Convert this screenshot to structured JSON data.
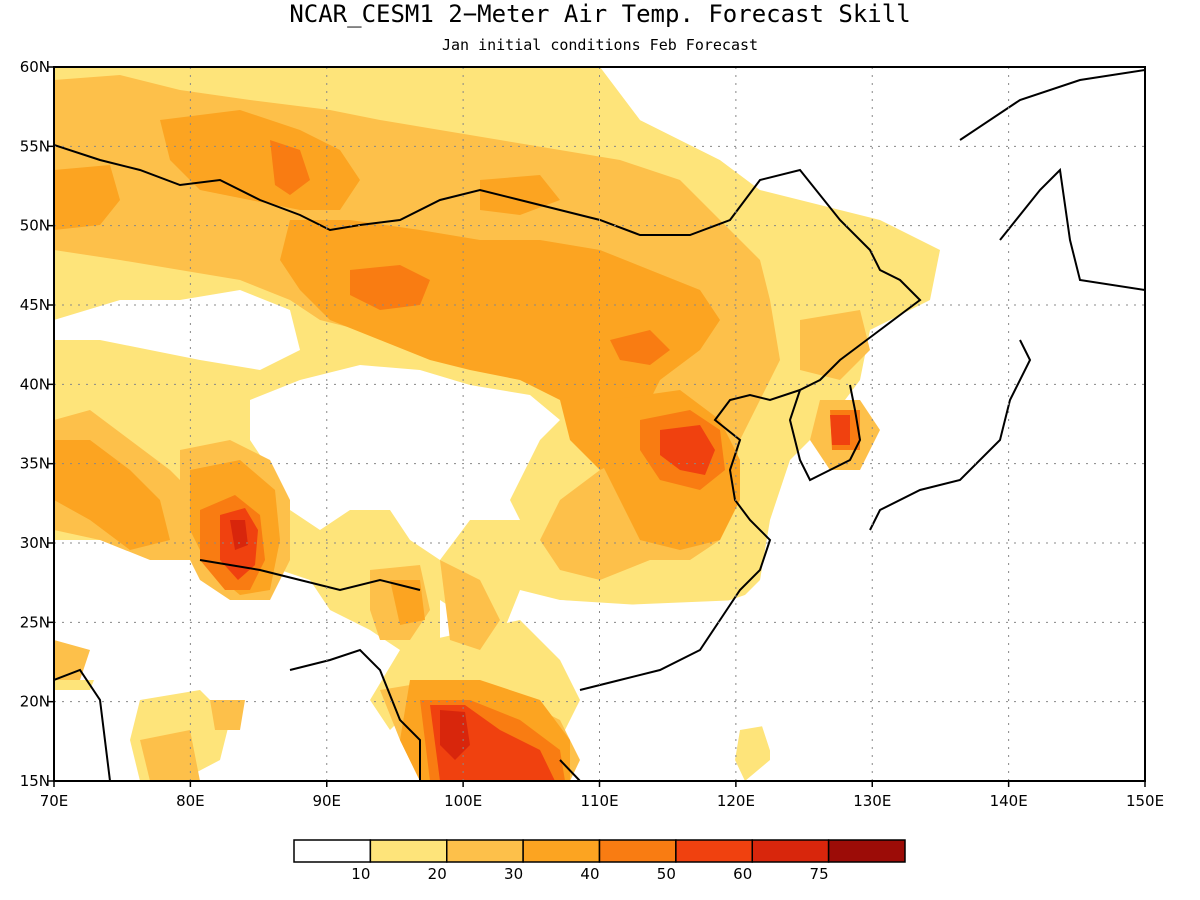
{
  "title": "NCAR_CESM1 2−Meter Air Temp. Forecast Skill",
  "subtitle": "Jan initial conditions  Feb Forecast",
  "map": {
    "lon_range": [
      70,
      150
    ],
    "lat_range": [
      15,
      60
    ],
    "lon_ticks": [
      "70E",
      "80E",
      "90E",
      "100E",
      "110E",
      "120E",
      "130E",
      "140E",
      "150E"
    ],
    "lat_ticks": [
      "15N",
      "20N",
      "25N",
      "30N",
      "35N",
      "40N",
      "45N",
      "50N",
      "55N",
      "60N"
    ],
    "grid": "dotted",
    "coastline_color": "#000000",
    "colors": {
      "c0": "#ffffff",
      "c1": "#fee47a",
      "c2": "#fdc04a",
      "c3": "#fca421",
      "c4": "#f97c12",
      "c5": "#f0410f",
      "c6": "#d8260c",
      "c7": "#9c0c07"
    }
  },
  "colorbar": {
    "bins": [
      "#ffffff",
      "#fee47a",
      "#fdc04a",
      "#fca421",
      "#f97c12",
      "#f0410f",
      "#d8260c",
      "#9c0c07"
    ],
    "labels": [
      "10",
      "20",
      "30",
      "40",
      "50",
      "60",
      "75"
    ]
  }
}
